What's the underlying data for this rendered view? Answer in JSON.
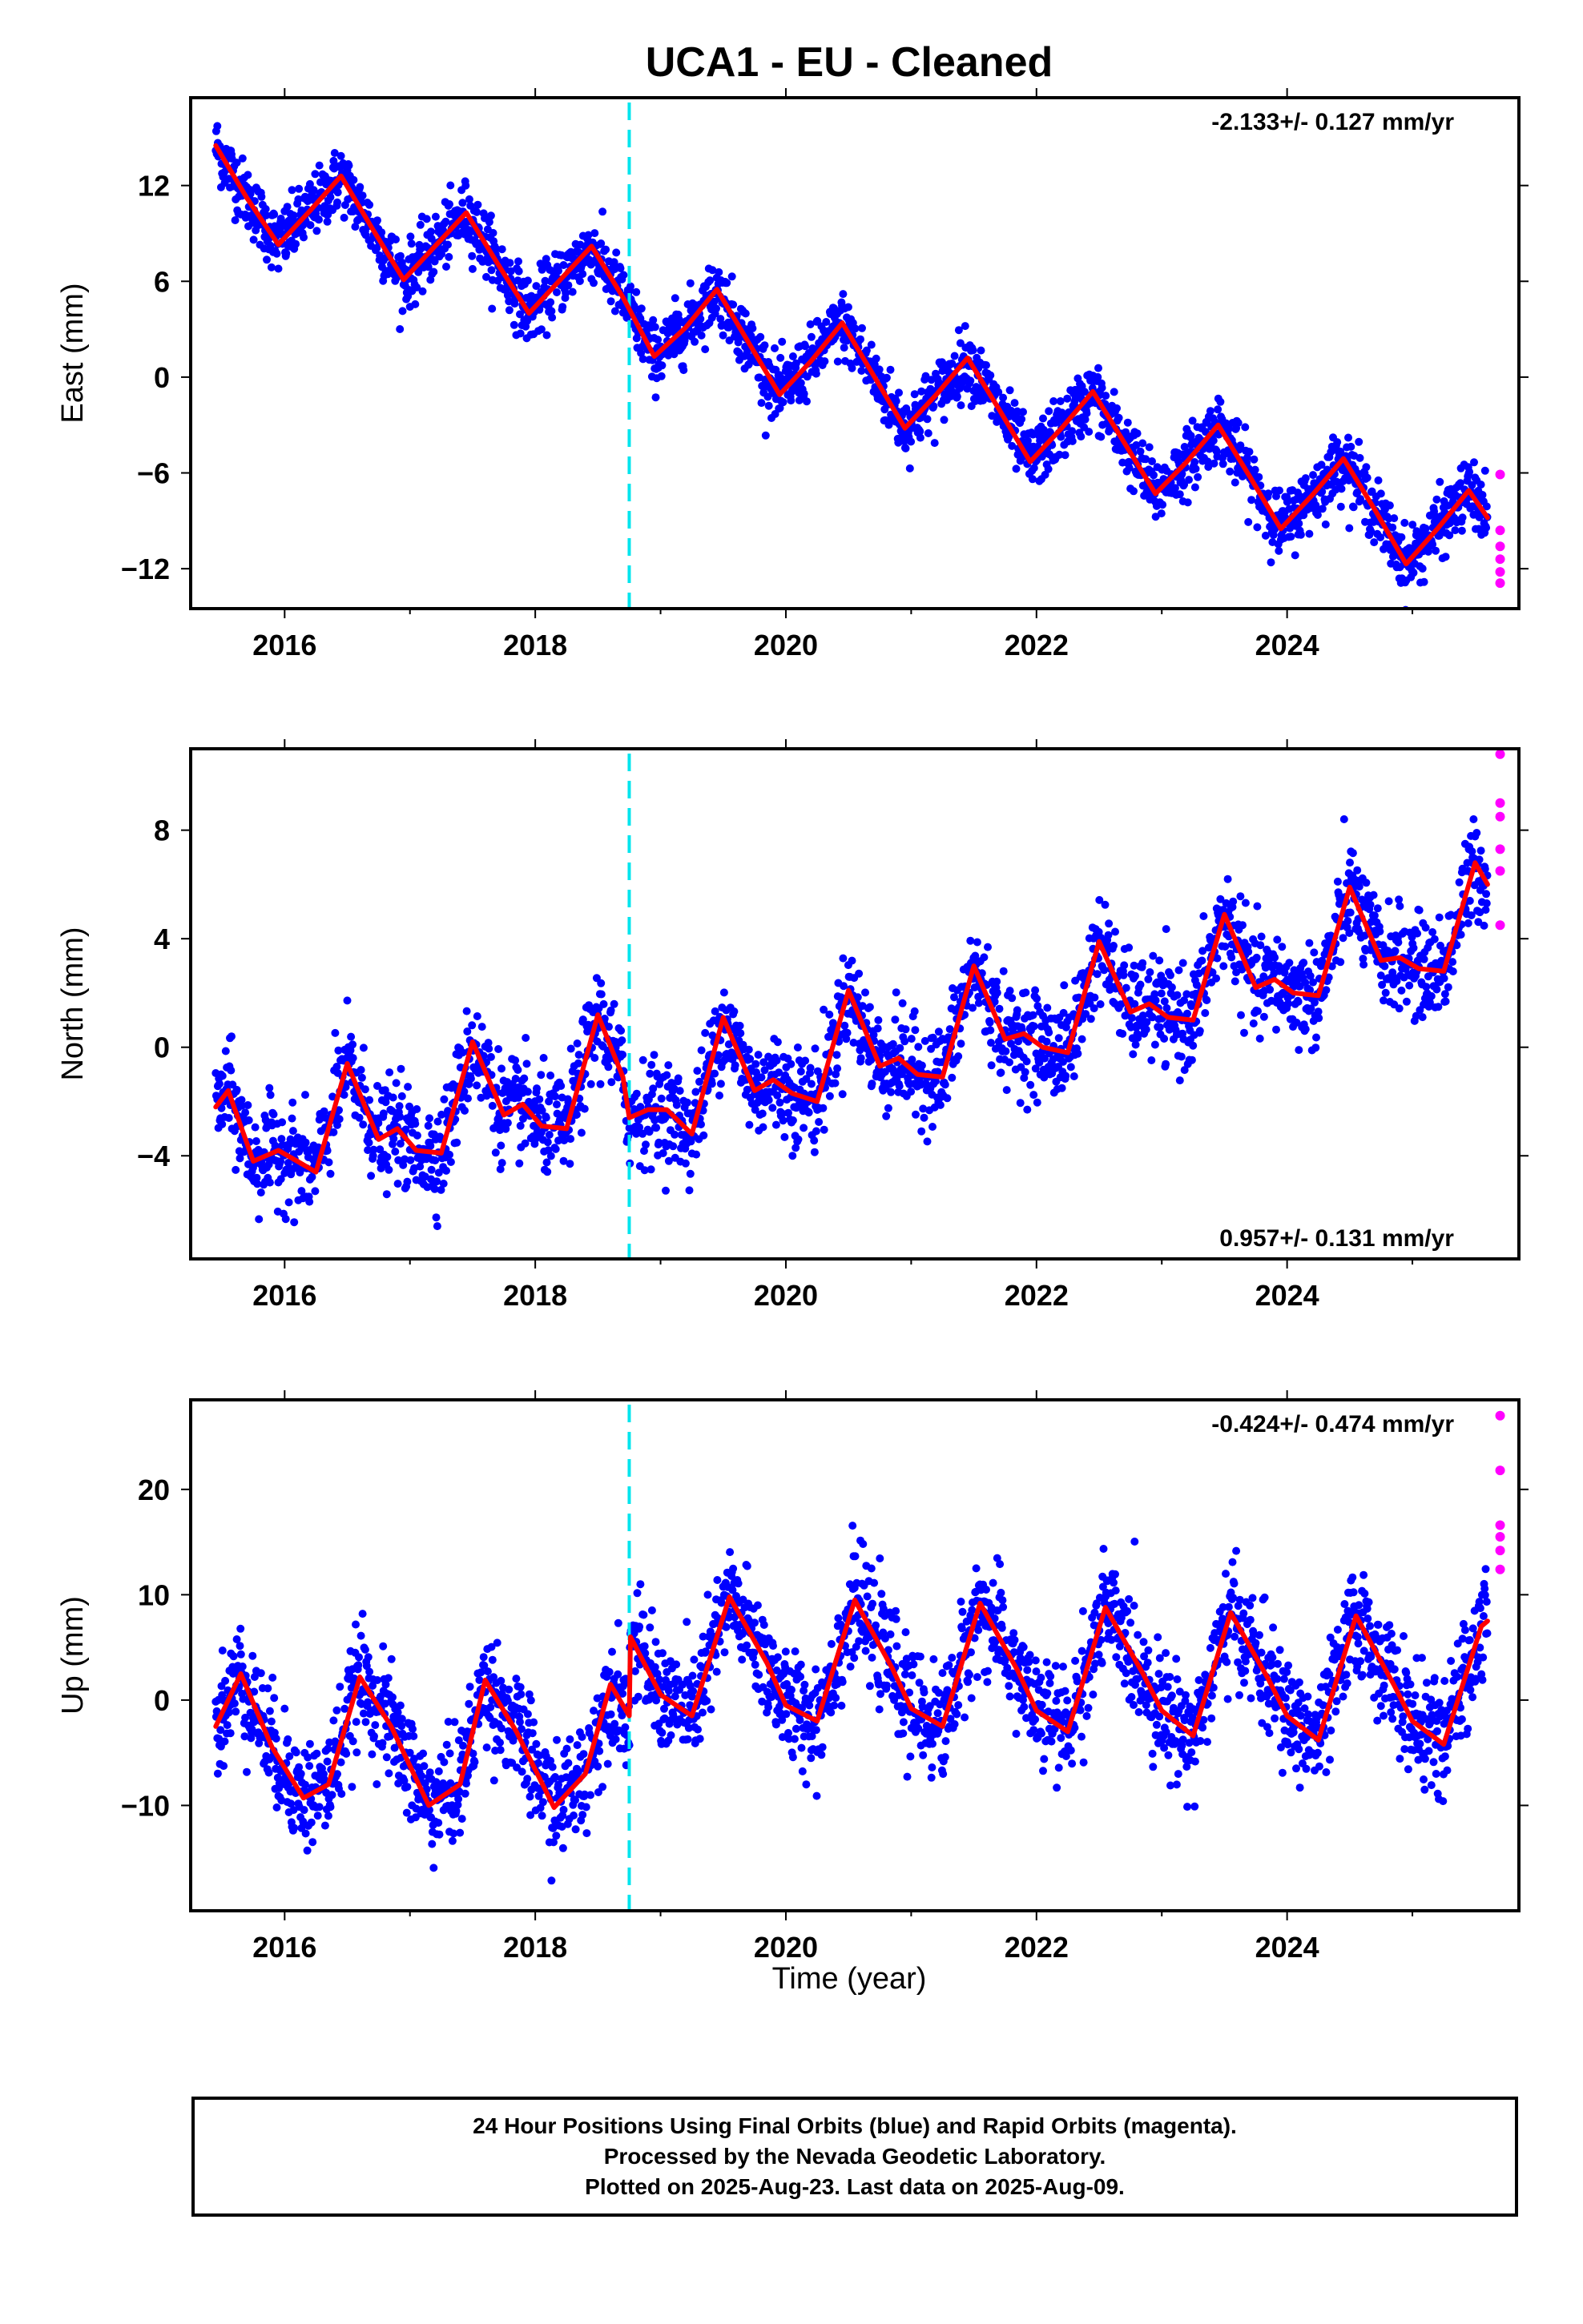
{
  "title": "UCA1  - EU - Cleaned",
  "xlabel": "Time (year)",
  "footer": {
    "line1": "24 Hour Positions Using Final Orbits (blue) and Rapid Orbits (magenta).",
    "line2": "Processed by the Nevada Geodetic Laboratory.",
    "line3": "Plotted on 2025-Aug-23. Last data on 2025-Aug-09."
  },
  "colors": {
    "final_points": "#0000ff",
    "rapid_points": "#ff00ff",
    "model": "#ff0000",
    "equipment_change": "#00e5ee"
  },
  "chart_data": [
    {
      "type": "scatter",
      "ylabel": "East (mm)",
      "xlim": [
        2015.25,
        2025.85
      ],
      "ylim": [
        -14.5,
        17.5
      ],
      "xticks": [
        2016,
        2018,
        2020,
        2022,
        2024
      ],
      "yticks": [
        -12,
        -6,
        0,
        6,
        12
      ],
      "rate_text": "-2.133+/- 0.127 mm/yr",
      "equipment_change_year": 2018.75,
      "series": [
        {
          "role": "model",
          "x": [
            2015.45,
            2015.7,
            2015.95,
            2016.2,
            2016.45,
            2016.7,
            2016.95,
            2017.2,
            2017.45,
            2017.7,
            2017.95,
            2018.2,
            2018.45,
            2018.7,
            2018.95,
            2019.2,
            2019.45,
            2019.7,
            2019.95,
            2020.2,
            2020.45,
            2020.7,
            2020.95,
            2021.2,
            2021.45,
            2021.7,
            2021.95,
            2022.2,
            2022.45,
            2022.7,
            2022.95,
            2023.2,
            2023.45,
            2023.7,
            2023.95,
            2024.2,
            2024.45,
            2024.7,
            2024.95,
            2025.2,
            2025.45,
            2025.6
          ],
          "y": [
            14.5,
            11.2,
            8.3,
            10.4,
            12.6,
            9.3,
            6.1,
            8.2,
            10.3,
            7.1,
            4.0,
            6.1,
            8.2,
            5.0,
            1.3,
            3.1,
            5.5,
            2.2,
            -1.1,
            1.0,
            3.4,
            0.1,
            -3.2,
            -1.1,
            1.2,
            -2.0,
            -5.3,
            -3.2,
            -0.9,
            -4.1,
            -7.3,
            -5.3,
            -3.0,
            -6.2,
            -9.5,
            -7.4,
            -5.1,
            -8.3,
            -11.7,
            -9.5,
            -7.1,
            -8.8
          ]
        },
        {
          "role": "rapid",
          "x": [
            2025.7,
            2025.7,
            2025.7,
            2025.7,
            2025.7,
            2025.7
          ],
          "y": [
            -6.1,
            -9.6,
            -10.6,
            -11.4,
            -12.2,
            -12.9
          ]
        }
      ]
    },
    {
      "type": "scatter",
      "ylabel": "North (mm)",
      "xlim": [
        2015.25,
        2025.85
      ],
      "ylim": [
        -7.8,
        11.0
      ],
      "xticks": [
        2016,
        2018,
        2020,
        2022,
        2024
      ],
      "yticks": [
        -4,
        0,
        4,
        8
      ],
      "rate_text": "0.957+/- 0.131 mm/yr",
      "equipment_change_year": 2018.75,
      "series": [
        {
          "role": "model",
          "x": [
            2015.45,
            2015.55,
            2015.75,
            2015.95,
            2016.1,
            2016.25,
            2016.5,
            2016.75,
            2016.9,
            2017.05,
            2017.25,
            2017.5,
            2017.75,
            2017.9,
            2018.05,
            2018.25,
            2018.5,
            2018.7,
            2018.75,
            2018.9,
            2019.05,
            2019.25,
            2019.5,
            2019.75,
            2019.9,
            2020.05,
            2020.25,
            2020.5,
            2020.75,
            2020.9,
            2021.05,
            2021.25,
            2021.5,
            2021.75,
            2021.9,
            2022.05,
            2022.25,
            2022.5,
            2022.75,
            2022.9,
            2023.05,
            2023.25,
            2023.5,
            2023.75,
            2023.9,
            2024.05,
            2024.25,
            2024.5,
            2024.75,
            2024.9,
            2025.05,
            2025.25,
            2025.5,
            2025.6
          ],
          "y": [
            -2.2,
            -1.6,
            -4.2,
            -3.8,
            -4.2,
            -4.6,
            -0.6,
            -3.4,
            -3.0,
            -3.8,
            -3.9,
            0.2,
            -2.5,
            -2.1,
            -2.9,
            -3.0,
            1.2,
            -1.1,
            -2.6,
            -2.3,
            -2.3,
            -3.2,
            1.1,
            -1.6,
            -1.2,
            -1.7,
            -2.0,
            2.1,
            -0.7,
            -0.4,
            -1.0,
            -1.1,
            3.0,
            0.3,
            0.5,
            0.0,
            -0.2,
            3.9,
            1.3,
            1.6,
            1.1,
            1.0,
            4.9,
            2.2,
            2.5,
            2.0,
            1.9,
            5.9,
            3.2,
            3.3,
            2.9,
            2.8,
            6.8,
            6.0
          ]
        },
        {
          "role": "rapid",
          "x": [
            2025.7,
            2025.7,
            2025.7,
            2025.7,
            2025.7,
            2025.7
          ],
          "y": [
            10.8,
            9.0,
            8.5,
            7.3,
            6.5,
            4.5
          ]
        }
      ]
    },
    {
      "type": "scatter",
      "ylabel": "Up (mm)",
      "xlim": [
        2015.25,
        2025.85
      ],
      "ylim": [
        -20.0,
        28.5
      ],
      "xticks": [
        2016,
        2018,
        2020,
        2022,
        2024
      ],
      "yticks": [
        -10,
        0,
        10,
        20
      ],
      "rate_text": "-0.424+/- 0.474 mm/yr",
      "equipment_change_year": 2018.75,
      "series": [
        {
          "role": "model",
          "x": [
            2015.45,
            2015.65,
            2015.9,
            2016.15,
            2016.35,
            2016.6,
            2016.85,
            2017.15,
            2017.4,
            2017.6,
            2017.85,
            2018.15,
            2018.4,
            2018.6,
            2018.75,
            2018.76,
            2019.0,
            2019.25,
            2019.55,
            2019.85,
            2020.0,
            2020.25,
            2020.55,
            2020.85,
            2021.0,
            2021.25,
            2021.55,
            2021.85,
            2022.0,
            2022.25,
            2022.55,
            2022.85,
            2023.0,
            2023.25,
            2023.55,
            2023.85,
            2024.0,
            2024.25,
            2024.55,
            2024.85,
            2025.0,
            2025.25,
            2025.55,
            2025.6
          ],
          "y": [
            -2.5,
            2.5,
            -4.5,
            -9.3,
            -8.0,
            2.2,
            -2.5,
            -10.0,
            -8.0,
            1.9,
            -3.0,
            -10.2,
            -7.0,
            1.5,
            -1.5,
            6.0,
            0.5,
            -1.5,
            9.8,
            3.5,
            -0.5,
            -2.0,
            9.5,
            3.0,
            -0.8,
            -2.5,
            9.2,
            2.8,
            -1.0,
            -3.0,
            8.8,
            2.5,
            -1.0,
            -3.4,
            8.3,
            2.0,
            -1.5,
            -3.8,
            8.0,
            1.5,
            -2.0,
            -4.2,
            7.0,
            7.5
          ]
        },
        {
          "role": "rapid",
          "x": [
            2025.7,
            2025.7,
            2025.7,
            2025.7,
            2025.7,
            2025.7
          ],
          "y": [
            27.0,
            21.8,
            16.6,
            15.5,
            14.2,
            12.4
          ]
        }
      ]
    }
  ]
}
